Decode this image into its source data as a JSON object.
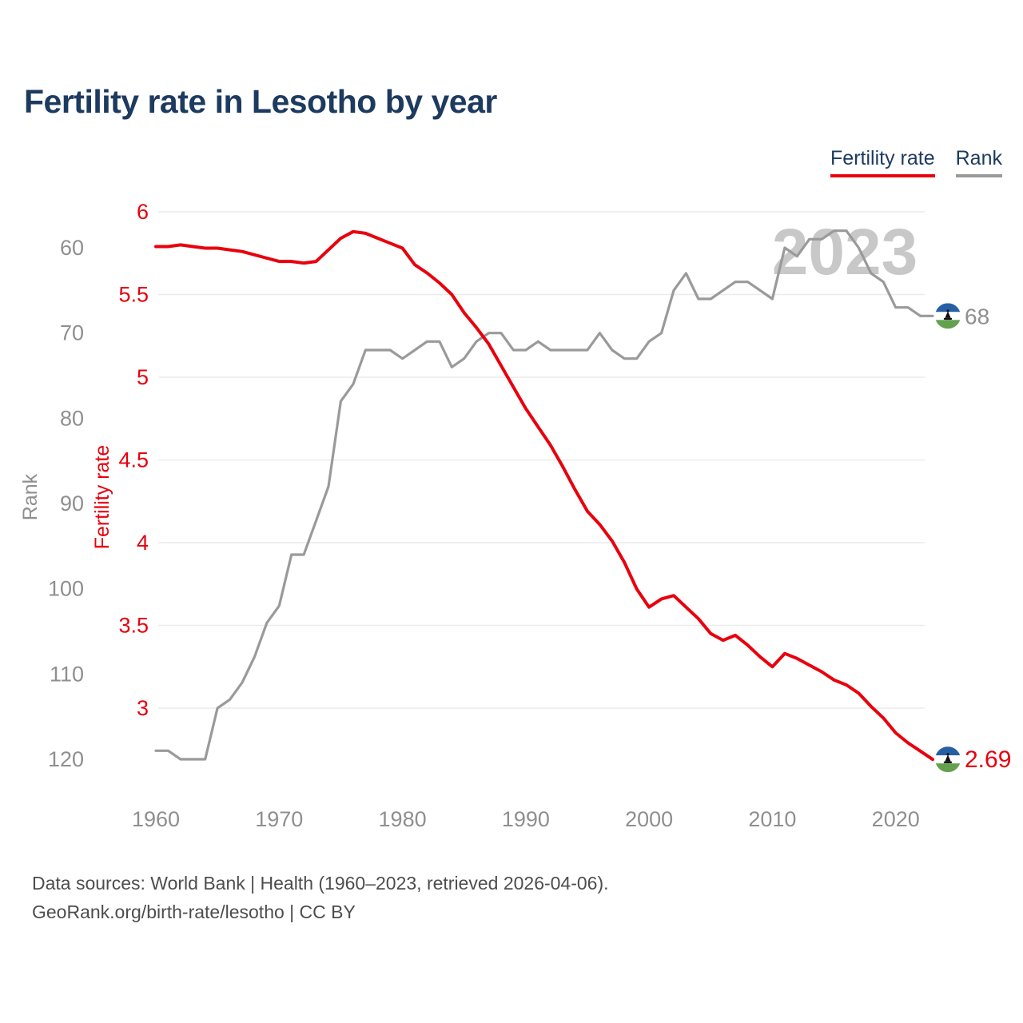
{
  "title": "Fertility rate in Lesotho by year",
  "watermark": "2023",
  "legend": [
    {
      "label": "Fertility rate",
      "color": "#e8000d"
    },
    {
      "label": "Rank",
      "color": "#9a9a9a"
    }
  ],
  "footer": {
    "line1": "Data sources: World Bank | Health (1960–2023, retrieved 2026-04-06).",
    "line2": "GeoRank.org/birth-rate/lesotho | CC BY"
  },
  "end_labels": {
    "fertility": "2.69",
    "rank": "68"
  },
  "colors": {
    "accent_red": "#e8000d",
    "line_gray": "#9a9a9a",
    "tick_gray": "#8f8f8f",
    "grid_gray": "#ebebeb",
    "watermark_gray": "#c8c8c8",
    "title_navy": "#1d3a5f",
    "flag_blue": "#2660a4",
    "flag_white": "#ffffff",
    "flag_green": "#63a14e",
    "flag_hat_black": "#111111"
  },
  "chart_data": {
    "type": "line",
    "title": "Fertility rate in Lesotho by year",
    "x": [
      1960,
      1961,
      1962,
      1963,
      1964,
      1965,
      1966,
      1967,
      1968,
      1969,
      1970,
      1971,
      1972,
      1973,
      1974,
      1975,
      1976,
      1977,
      1978,
      1979,
      1980,
      1981,
      1982,
      1983,
      1984,
      1985,
      1986,
      1987,
      1988,
      1989,
      1990,
      1991,
      1992,
      1993,
      1994,
      1995,
      1996,
      1997,
      1998,
      1999,
      2000,
      2001,
      2002,
      2003,
      2004,
      2005,
      2006,
      2007,
      2008,
      2009,
      2010,
      2011,
      2012,
      2013,
      2014,
      2015,
      2016,
      2017,
      2018,
      2019,
      2020,
      2021,
      2022,
      2023
    ],
    "series": [
      {
        "name": "Fertility rate",
        "axis": "fertility",
        "color": "#e8000d",
        "values": [
          5.79,
          5.79,
          5.8,
          5.79,
          5.78,
          5.78,
          5.77,
          5.76,
          5.74,
          5.72,
          5.7,
          5.7,
          5.69,
          5.7,
          5.77,
          5.84,
          5.88,
          5.87,
          5.84,
          5.81,
          5.78,
          5.68,
          5.63,
          5.57,
          5.5,
          5.39,
          5.3,
          5.2,
          5.07,
          4.94,
          4.81,
          4.7,
          4.59,
          4.46,
          4.32,
          4.19,
          4.11,
          4.01,
          3.88,
          3.72,
          3.61,
          3.66,
          3.68,
          3.61,
          3.54,
          3.45,
          3.41,
          3.44,
          3.38,
          3.31,
          3.25,
          3.33,
          3.3,
          3.26,
          3.22,
          3.17,
          3.14,
          3.09,
          3.01,
          2.94,
          2.85,
          2.79,
          2.74,
          2.69
        ]
      },
      {
        "name": "Rank",
        "axis": "rank",
        "color": "#9a9a9a",
        "values": [
          119,
          119,
          120,
          120,
          120,
          114,
          113,
          111,
          108,
          104,
          102,
          96,
          96,
          92,
          88,
          78,
          76,
          72,
          72,
          72,
          73,
          72,
          71,
          71,
          74,
          73,
          71,
          70,
          70,
          72,
          72,
          71,
          72,
          72,
          72,
          72,
          70,
          72,
          73,
          73,
          71,
          70,
          65,
          63,
          66,
          66,
          65,
          64,
          64,
          65,
          66,
          60,
          61,
          59,
          59,
          58,
          58,
          60,
          63,
          64,
          67,
          67,
          68,
          68
        ]
      }
    ],
    "x_axis": {
      "ticks": [
        1960,
        1970,
        1980,
        1990,
        2000,
        2010,
        2020
      ],
      "range": [
        1960,
        2023
      ]
    },
    "y_axis_fertility": {
      "label": "Fertility rate",
      "ticks": [
        6,
        5.5,
        5,
        4.5,
        4,
        3.5,
        3
      ],
      "color": "#e8000d"
    },
    "y_axis_rank": {
      "label": "Rank",
      "ticks": [
        60,
        70,
        80,
        90,
        100,
        110,
        120
      ],
      "inverted": true,
      "color": "#9a9a9a"
    },
    "grid": "horizontal-on-fertility-ticks",
    "legend_position": "top-right",
    "last_point_labels": {
      "year": 2023,
      "fertility": "2.69",
      "rank": "68"
    }
  }
}
